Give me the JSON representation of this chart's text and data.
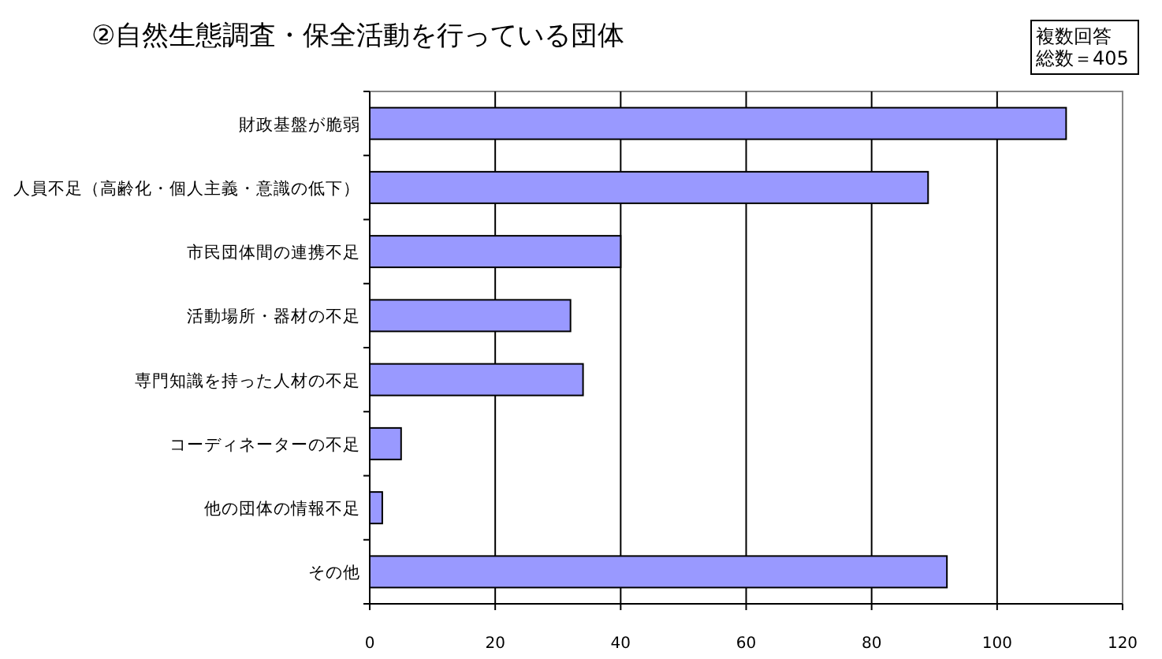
{
  "chart_data": {
    "type": "bar",
    "orientation": "horizontal",
    "title": "②自然生態調査・保全活動を行っている団体",
    "annotations": [
      "複数回答",
      "総数＝405"
    ],
    "categories": [
      "財政基盤が脆弱",
      "人員不足（高齢化・個人主義・意識の低下）",
      "市民団体間の連携不足",
      "活動場所・器材の不足",
      "専門知識を持った人材の不足",
      "コーディネーターの不足",
      "他の団体の情報不足",
      "その他"
    ],
    "values": [
      111,
      89,
      40,
      32,
      34,
      5,
      2,
      92
    ],
    "color": "#9999ff",
    "xlim": [
      0,
      120
    ],
    "xticks": [
      0,
      20,
      40,
      60,
      80,
      100,
      120
    ],
    "grid": "x"
  }
}
